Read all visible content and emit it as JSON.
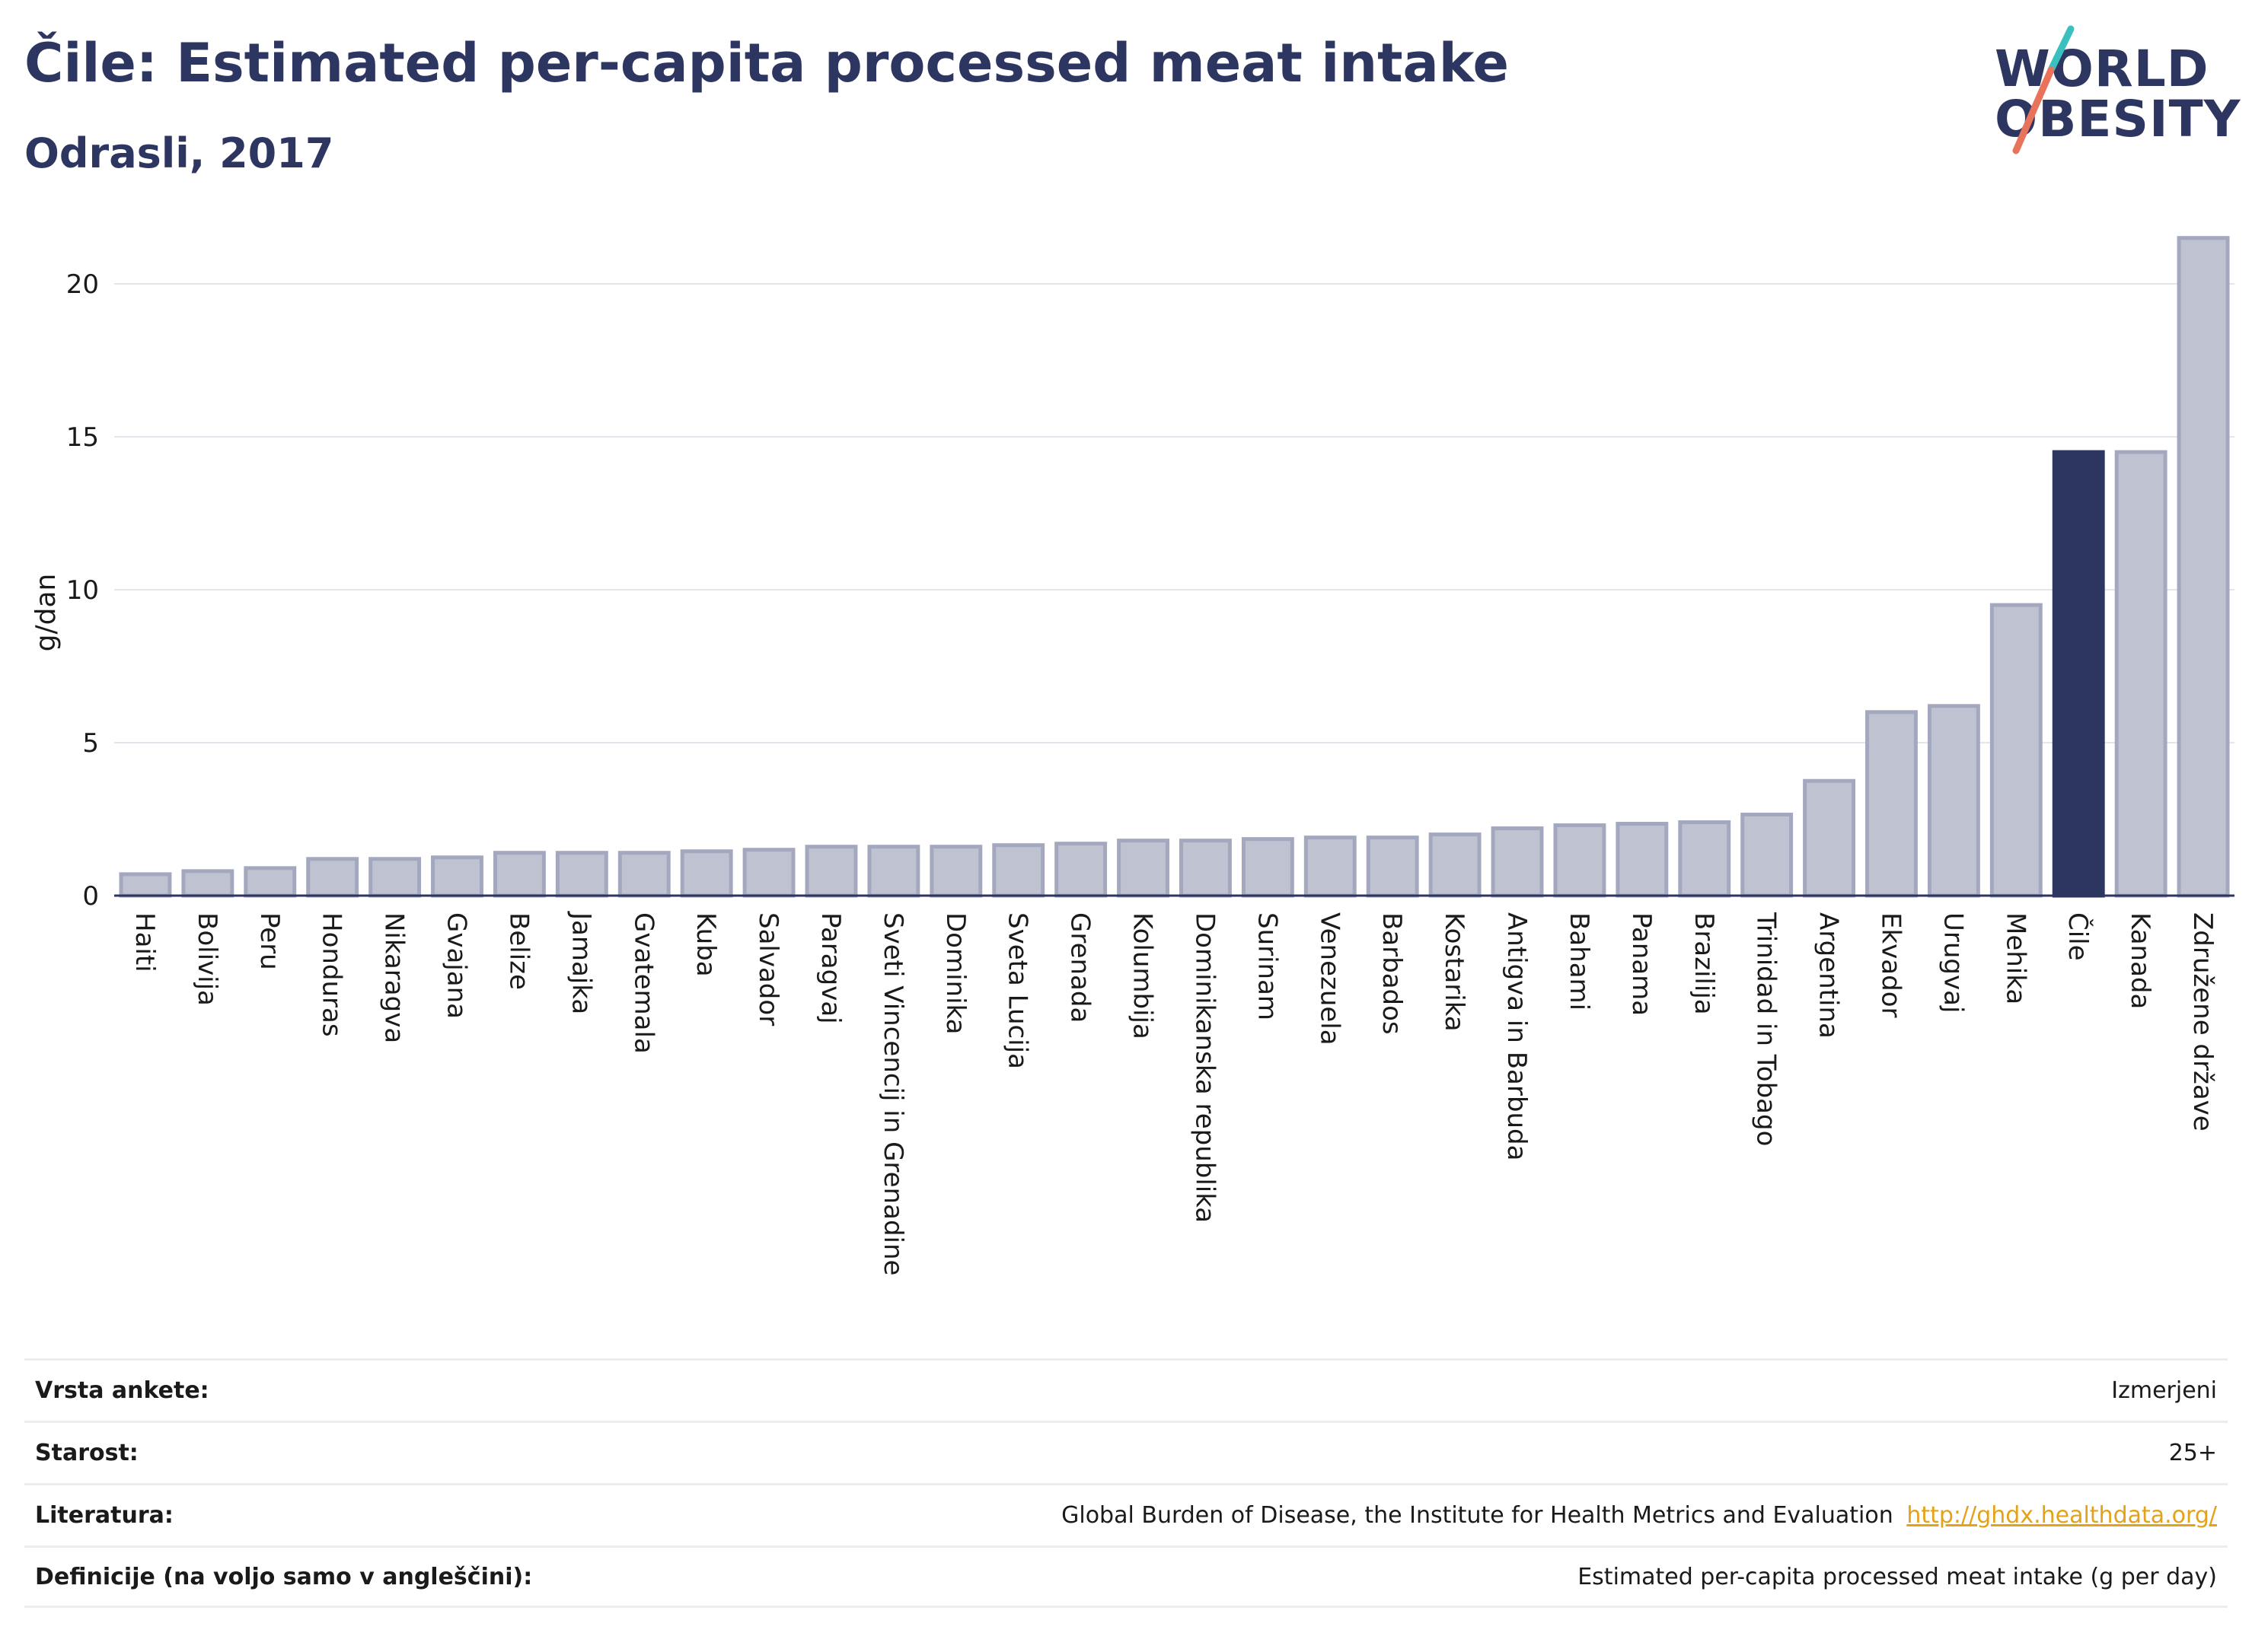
{
  "header": {
    "title": "Čile: Estimated per-capita processed meat intake",
    "subtitle": "Odrasli, 2017"
  },
  "logo": {
    "line1": "WORLD",
    "line2": "OBESITY",
    "colors": {
      "text": "#2d3561",
      "slash_top": "#3bbfbf",
      "slash_bottom": "#e8735a"
    }
  },
  "chart_data": {
    "type": "bar",
    "ylabel": "g/dan",
    "xlabel": "",
    "ylim": [
      0,
      22
    ],
    "yticks": [
      0,
      5,
      10,
      15,
      20
    ],
    "grid": true,
    "highlight": "Čile",
    "colors": {
      "bar": "#bfc3d1",
      "bar_border": "#a3a8be",
      "highlight": "#2d3561"
    },
    "categories": [
      "Haiti",
      "Bolivija",
      "Peru",
      "Honduras",
      "Nikaragva",
      "Gvajana",
      "Belize",
      "Jamajka",
      "Gvatemala",
      "Kuba",
      "Salvador",
      "Paragvaj",
      "Sveti Vincencij in Grenadine",
      "Dominika",
      "Sveta Lucija",
      "Grenada",
      "Kolumbija",
      "Dominikanska republika",
      "Surinam",
      "Venezuela",
      "Barbados",
      "Kostarika",
      "Antigva in Barbuda",
      "Bahami",
      "Panama",
      "Brazilija",
      "Trinidad in Tobago",
      "Argentina",
      "Ekvador",
      "Urugvaj",
      "Mehika",
      "Čile",
      "Kanada",
      "Združene države"
    ],
    "values": [
      0.7,
      0.8,
      0.9,
      1.2,
      1.2,
      1.25,
      1.4,
      1.4,
      1.4,
      1.45,
      1.5,
      1.6,
      1.6,
      1.6,
      1.65,
      1.7,
      1.8,
      1.8,
      1.85,
      1.9,
      1.9,
      2.0,
      2.2,
      2.3,
      2.35,
      2.4,
      2.65,
      3.75,
      6.0,
      6.2,
      9.5,
      14.5,
      14.5,
      21.5
    ]
  },
  "info": {
    "survey_type_label": "Vrsta ankete:",
    "survey_type_value": "Izmerjeni",
    "age_label": "Starost:",
    "age_value": "25+",
    "literature_label": "Literatura:",
    "literature_value": "Global Burden of Disease, the Institute for Health Metrics and Evaluation",
    "literature_link": "http://ghdx.healthdata.org/",
    "definitions_label": "Definicije (na voljo samo v angleščini):",
    "definitions_value": "Estimated per-capita processed meat intake (g per day)"
  }
}
